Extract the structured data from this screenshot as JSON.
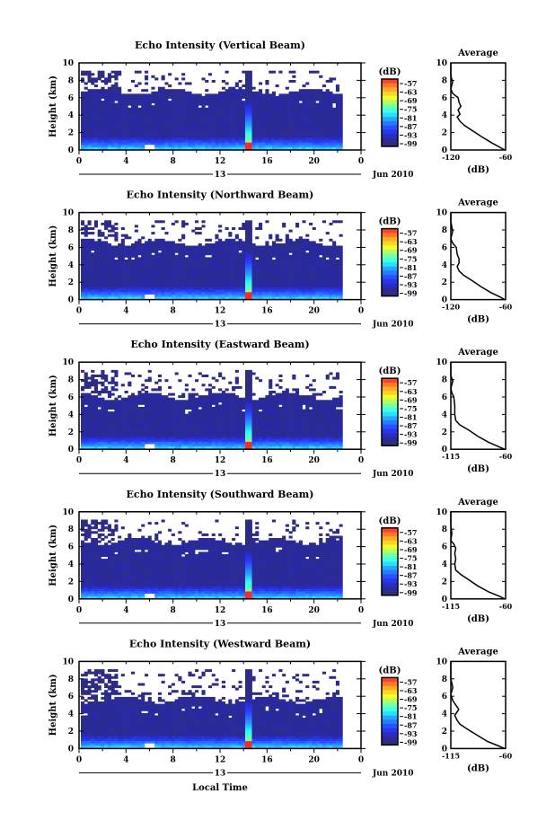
{
  "chart_data": {
    "type": "heatmap",
    "xlabel": "Local Time",
    "ylabel": "Height (km)",
    "xticks": [
      "0",
      "4",
      "8",
      "12",
      "16",
      "20",
      "0"
    ],
    "xlim": [
      0,
      24
    ],
    "ylim": [
      0,
      10
    ],
    "yticks": [
      "0",
      "2",
      "4",
      "6",
      "8",
      "10"
    ],
    "date_day": "13",
    "date_month": "Jun 2010",
    "colorbar": {
      "label": "(dB)",
      "ticks": [
        "-57",
        "-63",
        "-69",
        "-75",
        "-81",
        "-87",
        "-93",
        "-99"
      ],
      "range": [
        -102,
        -54
      ]
    },
    "profile_title": "Average",
    "profile_xlabel": "(dB)",
    "panels": [
      {
        "title": "Echo Intensity (Vertical Beam)",
        "profile_xticks": [
          "-120",
          "-60"
        ],
        "profile_xlim": [
          -120,
          -60
        ],
        "cloud_top_km": 6.6,
        "spike_hour": 14.6,
        "profile": [
          [
            -61,
            0
          ],
          [
            -66,
            0.3
          ],
          [
            -75,
            0.8
          ],
          [
            -86,
            1.5
          ],
          [
            -96,
            2.2
          ],
          [
            -105,
            2.8
          ],
          [
            -110,
            3.3
          ],
          [
            -113,
            3.8
          ],
          [
            -110,
            4.1
          ],
          [
            -112,
            4.6
          ],
          [
            -109,
            5
          ],
          [
            -111,
            5.5
          ],
          [
            -112,
            6
          ],
          [
            -118,
            6.5
          ],
          [
            -120,
            7
          ],
          [
            -118,
            7.8
          ],
          [
            -120,
            8.5
          ],
          [
            -120,
            10
          ]
        ]
      },
      {
        "title": "Echo Intensity (Northward Beam)",
        "profile_xticks": [
          "-120",
          "-60"
        ],
        "profile_xlim": [
          -120,
          -60
        ],
        "cloud_top_km": 6.4,
        "spike_hour": 14.6,
        "profile": [
          [
            -61,
            0
          ],
          [
            -66,
            0.3
          ],
          [
            -76,
            0.8
          ],
          [
            -87,
            1.5
          ],
          [
            -97,
            2.2
          ],
          [
            -106,
            2.8
          ],
          [
            -111,
            3.3
          ],
          [
            -113,
            3.8
          ],
          [
            -111,
            4.2
          ],
          [
            -111,
            4.7
          ],
          [
            -113,
            5.2
          ],
          [
            -114,
            6
          ],
          [
            -118,
            6.5
          ],
          [
            -120,
            7
          ],
          [
            -118,
            7.8
          ],
          [
            -120,
            9
          ],
          [
            -120,
            10
          ]
        ]
      },
      {
        "title": "Echo Intensity (Eastward Beam)",
        "profile_xticks": [
          "-115",
          "-60"
        ],
        "profile_xlim": [
          -115,
          -60
        ],
        "cloud_top_km": 6.0,
        "spike_hour": 14.6,
        "profile": [
          [
            -61,
            0
          ],
          [
            -67,
            0.3
          ],
          [
            -77,
            0.8
          ],
          [
            -88,
            1.5
          ],
          [
            -97,
            2.2
          ],
          [
            -106,
            2.8
          ],
          [
            -110,
            3.3
          ],
          [
            -111,
            4
          ],
          [
            -111,
            5
          ],
          [
            -112,
            6
          ],
          [
            -114,
            6.5
          ],
          [
            -115,
            7
          ],
          [
            -113,
            7.8
          ],
          [
            -115,
            8.5
          ],
          [
            -115,
            10
          ]
        ]
      },
      {
        "title": "Echo Intensity (Southward Beam)",
        "profile_xticks": [
          "-115",
          "-60"
        ],
        "profile_xlim": [
          -115,
          -60
        ],
        "cloud_top_km": 6.5,
        "spike_hour": 14.6,
        "profile": [
          [
            -61,
            0
          ],
          [
            -66,
            0.3
          ],
          [
            -77,
            0.8
          ],
          [
            -88,
            1.5
          ],
          [
            -97,
            2.2
          ],
          [
            -105,
            2.8
          ],
          [
            -110,
            3.3
          ],
          [
            -111,
            4
          ],
          [
            -110,
            4.6
          ],
          [
            -111,
            5.2
          ],
          [
            -110,
            5.8
          ],
          [
            -112,
            6.3
          ],
          [
            -115,
            6.7
          ],
          [
            -114,
            7.5
          ],
          [
            -115,
            8.5
          ],
          [
            -115,
            10
          ]
        ]
      },
      {
        "title": "Echo Intensity (Westward Beam)",
        "profile_xticks": [
          "-115",
          "-60"
        ],
        "profile_xlim": [
          -115,
          -60
        ],
        "cloud_top_km": 5.5,
        "spike_hour": 14.6,
        "profile": [
          [
            -61,
            0
          ],
          [
            -67,
            0.3
          ],
          [
            -78,
            0.8
          ],
          [
            -88,
            1.5
          ],
          [
            -98,
            2.2
          ],
          [
            -106,
            2.8
          ],
          [
            -109,
            3.3
          ],
          [
            -111,
            3.8
          ],
          [
            -107,
            4.5
          ],
          [
            -110,
            5
          ],
          [
            -113,
            5.5
          ],
          [
            -115,
            6.2
          ],
          [
            -113,
            7
          ],
          [
            -115,
            8
          ],
          [
            -115,
            10
          ]
        ]
      }
    ]
  }
}
